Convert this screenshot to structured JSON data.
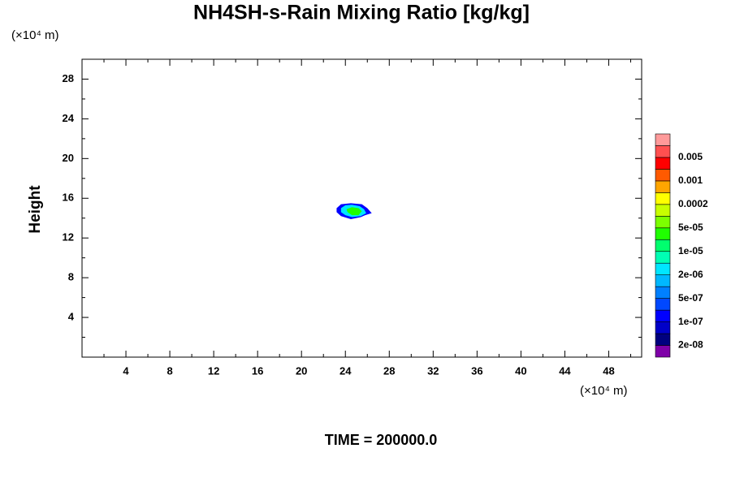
{
  "chart_data": {
    "type": "contour",
    "title": "NH4SH-s-Rain Mixing Ratio [kg/kg]",
    "ylabel": "Height",
    "x_unit": "(×10⁴ m)",
    "y_unit": "(×10⁴ m)",
    "footer": "TIME = 200000.0",
    "xlim": [
      0,
      51
    ],
    "ylim": [
      0,
      30
    ],
    "xticks": [
      4,
      8,
      12,
      16,
      20,
      24,
      28,
      32,
      36,
      40,
      44,
      48
    ],
    "yticks": [
      4,
      8,
      12,
      16,
      20,
      24,
      28
    ],
    "x_minor_ticks": [
      2,
      6,
      10,
      14,
      18,
      22,
      26,
      30,
      34,
      38,
      42,
      46,
      50
    ],
    "y_minor_ticks": [
      2,
      6,
      10,
      14,
      18,
      22,
      26
    ],
    "colorbar": {
      "colors": [
        "#7f00a8",
        "#00007f",
        "#0000c8",
        "#0000ff",
        "#0048ff",
        "#0080ff",
        "#00b8ff",
        "#00e6ff",
        "#00ffb4",
        "#00ff6e",
        "#20ff00",
        "#7cff00",
        "#c8ff00",
        "#ffff00",
        "#ffa500",
        "#ff5a00",
        "#ff0000",
        "#ff5050",
        "#ff9a9a"
      ],
      "levels": [
        {
          "value": 2e-08,
          "label": "2e-08"
        },
        {
          "value": 1e-07,
          "label": "1e-07"
        },
        {
          "value": 5e-07,
          "label": "5e-07"
        },
        {
          "value": 2e-06,
          "label": "2e-06"
        },
        {
          "value": 1e-05,
          "label": "1e-05"
        },
        {
          "value": 5e-05,
          "label": "5e-05"
        },
        0.0002,
        0.001,
        0.005
      ]
    },
    "contours": [
      {
        "level": 3,
        "x": [
          23.2,
          23.6,
          24.5,
          25.5,
          26.0,
          26.4,
          25.8,
          25.4,
          24.5,
          23.6,
          23.2
        ],
        "y": [
          15.0,
          15.4,
          15.5,
          15.4,
          15.0,
          14.5,
          14.3,
          14.1,
          13.9,
          14.2,
          14.6
        ]
      },
      {
        "level": 7,
        "x": [
          23.6,
          24.0,
          24.6,
          25.3,
          25.7,
          25.9,
          25.4,
          24.6,
          24.0,
          23.6
        ],
        "y": [
          15.0,
          15.3,
          15.35,
          15.2,
          14.9,
          14.5,
          14.2,
          14.1,
          14.3,
          14.6
        ]
      },
      {
        "level": 10,
        "x": [
          24.1,
          24.6,
          25.2,
          25.5,
          25.2,
          24.6,
          24.2
        ],
        "y": [
          14.9,
          15.1,
          15.0,
          14.7,
          14.3,
          14.3,
          14.6
        ]
      }
    ]
  }
}
